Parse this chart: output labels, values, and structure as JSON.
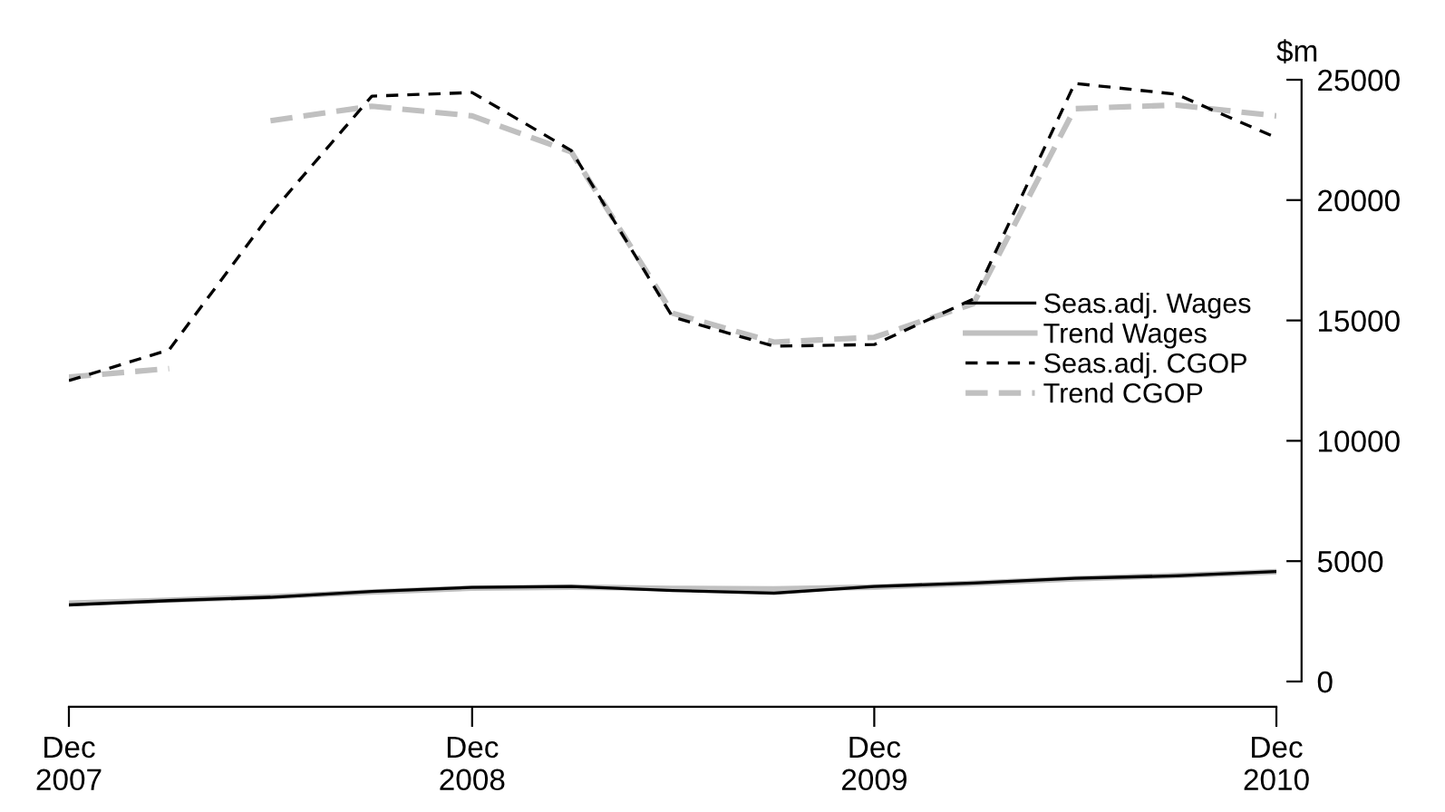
{
  "chart_data": {
    "type": "line",
    "ylabel": "$m",
    "x": [
      "2007-12",
      "2008-03",
      "2008-06",
      "2008-09",
      "2008-12",
      "2009-03",
      "2009-06",
      "2009-09",
      "2009-12",
      "2010-03",
      "2010-06",
      "2010-09",
      "2010-12"
    ],
    "series": [
      {
        "name": "Seas.adj. Wages",
        "color": "#000000",
        "line_style": "solid",
        "values": [
          3180,
          3360,
          3500,
          3740,
          3910,
          3950,
          3780,
          3670,
          3950,
          4090,
          4290,
          4390,
          4570
        ]
      },
      {
        "name": "Trend Wages",
        "color": "#c0c0c0",
        "line_style": "solid",
        "values": [
          3250,
          3380,
          3520,
          3720,
          3880,
          3920,
          3870,
          3850,
          3920,
          4080,
          4270,
          4400,
          4560
        ]
      },
      {
        "name": "Seas.adj. CGOP",
        "color": "#000000",
        "line_style": "dashed",
        "values": [
          12500,
          13780,
          19430,
          24320,
          24470,
          22060,
          15140,
          13930,
          14000,
          15890,
          24850,
          24400,
          22590
        ]
      },
      {
        "name": "Trend CGOP",
        "color": "#c0c0c0",
        "line_style": "dashed",
        "x": [
          "2007-12",
          "2008-03",
          "2008-05",
          "2008-06",
          "2008-09",
          "2008-12",
          "2009-03",
          "2009-06",
          "2009-09",
          "2009-12",
          "2010-03",
          "2010-06",
          "2010-09",
          "2010-12"
        ],
        "values": [
          12650,
          13000,
          null,
          23300,
          23900,
          23500,
          22000,
          15300,
          14100,
          14300,
          15700,
          23800,
          23950,
          23500
        ]
      }
    ],
    "xlim": [
      "2007-12",
      "2010-12"
    ],
    "xticks": [
      {
        "value": "2007-12",
        "label": "Dec\n2007"
      },
      {
        "value": "2008-12",
        "label": "Dec\n2008"
      },
      {
        "value": "2009-12",
        "label": "Dec\n2009"
      },
      {
        "value": "2010-12",
        "label": "Dec\n2010"
      }
    ],
    "ylim": [
      0,
      25000
    ],
    "yticks": [
      0,
      5000,
      10000,
      15000,
      20000,
      25000
    ],
    "legend": "right",
    "grid": false,
    "marker": "none"
  }
}
